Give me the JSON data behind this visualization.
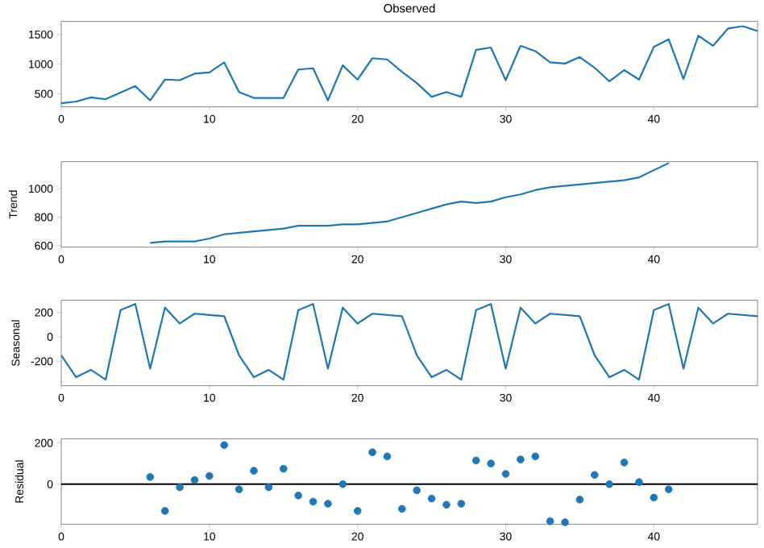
{
  "chart_data": [
    {
      "type": "line",
      "title": "Observed",
      "x": [
        0,
        1,
        2,
        3,
        4,
        5,
        6,
        7,
        8,
        9,
        10,
        11,
        12,
        13,
        14,
        15,
        16,
        17,
        18,
        19,
        20,
        21,
        22,
        23,
        24,
        25,
        26,
        27,
        28,
        29,
        30,
        31,
        32,
        33,
        34,
        35,
        36,
        37,
        38,
        39,
        40,
        41,
        42,
        43,
        44,
        45,
        46,
        47
      ],
      "series": [
        {
          "color": "#1f77b4",
          "values": [
            340,
            370,
            440,
            410,
            520,
            630,
            390,
            740,
            730,
            840,
            860,
            1030,
            530,
            430,
            430,
            430,
            910,
            930,
            390,
            980,
            740,
            1100,
            1080,
            870,
            680,
            450,
            530,
            450,
            1240,
            1280,
            730,
            1310,
            1220,
            1030,
            1010,
            1120,
            940,
            710,
            900,
            740,
            1290,
            1420,
            750,
            1480,
            1310,
            1600,
            1640,
            1560
          ]
        }
      ],
      "xlim": [
        0,
        47
      ],
      "xticks": [
        0,
        10,
        20,
        30,
        40
      ],
      "ylim": [
        280,
        1720
      ],
      "yticks": [
        500,
        1000,
        1500
      ]
    },
    {
      "type": "line",
      "ylabel": "Trend",
      "x": [
        6,
        7,
        8,
        9,
        10,
        11,
        12,
        13,
        14,
        15,
        16,
        17,
        18,
        19,
        20,
        21,
        22,
        23,
        24,
        25,
        26,
        27,
        28,
        29,
        30,
        31,
        32,
        33,
        34,
        35,
        36,
        37,
        38,
        39,
        40,
        41
      ],
      "series": [
        {
          "color": "#1f77b4",
          "values": [
            620,
            630,
            630,
            630,
            650,
            680,
            690,
            700,
            710,
            720,
            740,
            740,
            740,
            750,
            750,
            760,
            770,
            800,
            830,
            860,
            890,
            910,
            900,
            910,
            940,
            960,
            990,
            1010,
            1020,
            1030,
            1040,
            1050,
            1060,
            1080,
            1130,
            1180
          ]
        }
      ],
      "xlim": [
        0,
        47
      ],
      "xticks": [
        0,
        10,
        20,
        30,
        40
      ],
      "ylim": [
        590,
        1190
      ],
      "yticks": [
        600,
        800,
        1000
      ]
    },
    {
      "type": "line",
      "ylabel": "Seasonal",
      "x": [
        0,
        1,
        2,
        3,
        4,
        5,
        6,
        7,
        8,
        9,
        10,
        11,
        12,
        13,
        14,
        15,
        16,
        17,
        18,
        19,
        20,
        21,
        22,
        23,
        24,
        25,
        26,
        27,
        28,
        29,
        30,
        31,
        32,
        33,
        34,
        35,
        36,
        37,
        38,
        39,
        40,
        41,
        42,
        43,
        44,
        45,
        46,
        47
      ],
      "series": [
        {
          "color": "#1f77b4",
          "values": [
            -150,
            -330,
            -270,
            -350,
            220,
            270,
            -260,
            240,
            110,
            190,
            180,
            170,
            -150,
            -330,
            -270,
            -350,
            220,
            270,
            -260,
            240,
            110,
            190,
            180,
            170,
            -150,
            -330,
            -270,
            -350,
            220,
            270,
            -260,
            240,
            110,
            190,
            180,
            170,
            -150,
            -330,
            -270,
            -350,
            220,
            270,
            -260,
            240,
            110,
            190,
            180,
            170
          ]
        }
      ],
      "xlim": [
        0,
        47
      ],
      "xticks": [
        0,
        10,
        20,
        30,
        40
      ],
      "ylim": [
        -400,
        300
      ],
      "yticks": [
        -200,
        0,
        200
      ]
    },
    {
      "type": "scatter",
      "ylabel": "Residual",
      "marker": "circle",
      "x": [
        6,
        7,
        8,
        9,
        10,
        11,
        12,
        13,
        14,
        15,
        16,
        17,
        18,
        19,
        20,
        21,
        22,
        23,
        24,
        25,
        26,
        27,
        28,
        29,
        30,
        31,
        32,
        33,
        34,
        35,
        36,
        37,
        38,
        39,
        40,
        41
      ],
      "series": [
        {
          "color": "#1f77b4",
          "values": [
            35,
            -130,
            -15,
            20,
            40,
            190,
            -25,
            65,
            -15,
            75,
            -55,
            -85,
            -95,
            0,
            -130,
            155,
            135,
            -120,
            -30,
            -70,
            -100,
            -95,
            115,
            100,
            50,
            120,
            135,
            -180,
            -185,
            -75,
            45,
            0,
            105,
            10,
            -65,
            -25
          ]
        }
      ],
      "xlim": [
        0,
        47
      ],
      "xticks": [
        0,
        10,
        20,
        30,
        40
      ],
      "ylim": [
        -195,
        220
      ],
      "yticks": [
        0,
        200
      ],
      "ref_lines": [
        {
          "axis": "y",
          "value": 0,
          "color": "#000000"
        }
      ]
    }
  ]
}
